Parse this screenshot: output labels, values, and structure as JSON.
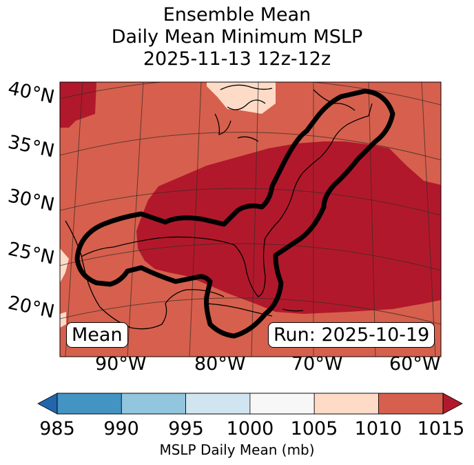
{
  "title": {
    "line1": "Ensemble Mean",
    "line2": "Daily Mean Minimum MSLP",
    "line3": "2025-11-13 12z-12z"
  },
  "latitude_labels": [
    "40°N",
    "35°N",
    "30°N",
    "25°N",
    "20°N"
  ],
  "longitude_labels": [
    "90°W",
    "80°W",
    "70°W",
    "60°W"
  ],
  "mean_label": "Mean",
  "run_label": "Run: 2025-10-19",
  "colorbar": {
    "ticks": [
      "985",
      "990",
      "995",
      "1000",
      "1005",
      "1010",
      "1015"
    ],
    "label": "MSLP Daily Mean (mb)",
    "colors": [
      "#2166ac",
      "#4393c3",
      "#92c5de",
      "#d1e5f0",
      "#f7f7f7",
      "#fddbc7",
      "#d6604d",
      "#b2182b"
    ]
  },
  "legend_colors": {
    "lt_1005": "#f7f7f7",
    "c1005_1010": "#fddbc7",
    "c1010_1015": "#d6604d",
    "gt_1015": "#b2182b",
    "contour": "#000000"
  }
}
